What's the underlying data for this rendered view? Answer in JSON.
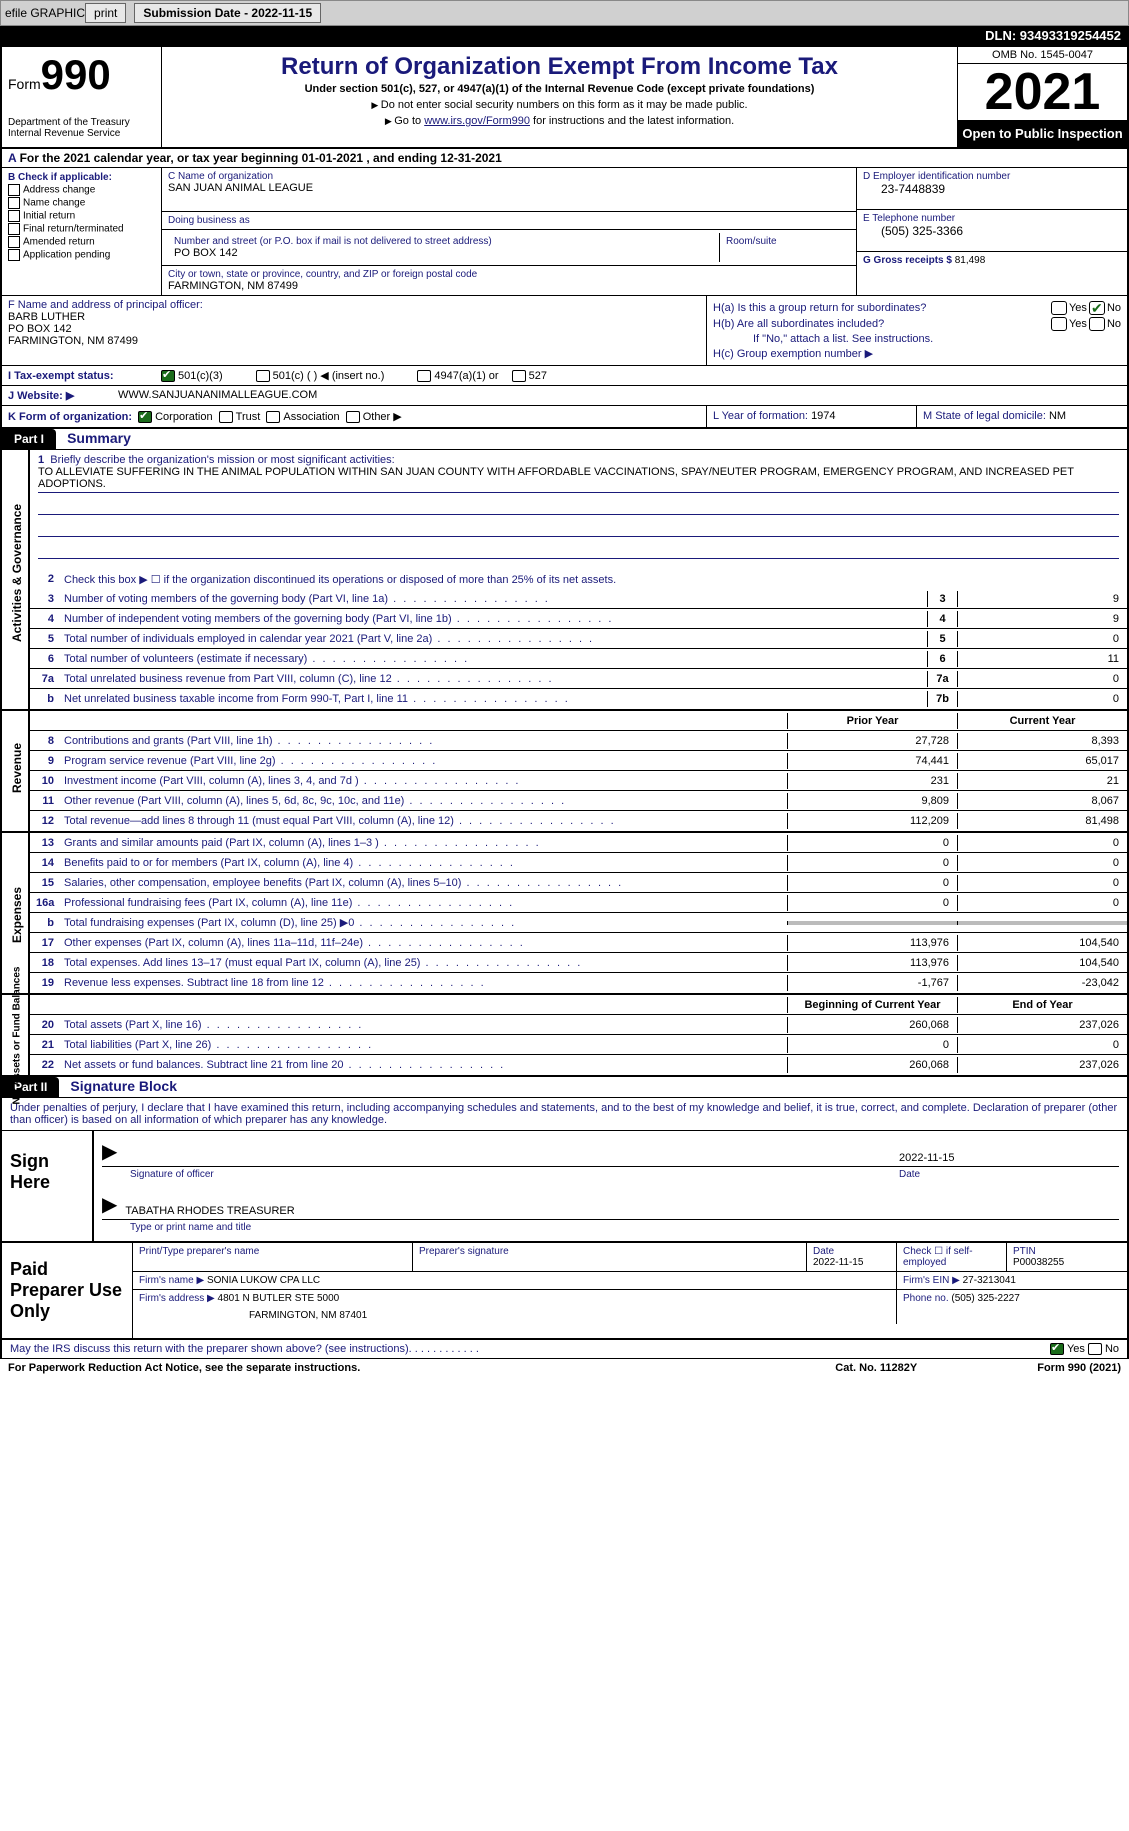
{
  "topbar": {
    "efile_label": "efile GRAPHIC",
    "print_label": "print",
    "submission_label": "Submission Date - 2022-11-15",
    "dln_label": "DLN: 93493319254452"
  },
  "header": {
    "form_label": "Form",
    "form_number": "990",
    "dept": "Department of the Treasury\nInternal Revenue Service",
    "title": "Return of Organization Exempt From Income Tax",
    "subtitle": "Under section 501(c), 527, or 4947(a)(1) of the Internal Revenue Code (except private foundations)",
    "note1": "Do not enter social security numbers on this form as it may be made public.",
    "note2_pre": "Go to ",
    "note2_link": "www.irs.gov/Form990",
    "note2_post": " for instructions and the latest information.",
    "omb": "OMB No. 1545-0047",
    "year": "2021",
    "open": "Open to Public Inspection"
  },
  "line_a": "For the 2021 calendar year, or tax year beginning 01-01-2021   , and ending 12-31-2021",
  "col_b": {
    "label": "B Check if applicable:",
    "items": [
      "Address change",
      "Name change",
      "Initial return",
      "Final return/terminated",
      "Amended return",
      "Application pending"
    ]
  },
  "col_c": {
    "name_label": "C Name of organization",
    "name": "SAN JUAN ANIMAL LEAGUE",
    "dba_label": "Doing business as",
    "dba": "",
    "street_label": "Number and street (or P.O. box if mail is not delivered to street address)",
    "street": "PO BOX 142",
    "room_label": "Room/suite",
    "city_label": "City or town, state or province, country, and ZIP or foreign postal code",
    "city": "FARMINGTON, NM  87499"
  },
  "col_deg": {
    "d_label": "D Employer identification number",
    "d_val": "23-7448839",
    "e_label": "E Telephone number",
    "e_val": "(505) 325-3366",
    "g_label": "G Gross receipts $",
    "g_val": "81,498"
  },
  "col_f": {
    "label": "F Name and address of principal officer:",
    "name": "BARB LUTHER",
    "addr1": "PO BOX 142",
    "addr2": "FARMINGTON, NM  87499"
  },
  "col_h": {
    "a_label": "H(a)  Is this a group return for subordinates?",
    "b_label": "H(b)  Are all subordinates included?",
    "b_note": "If \"No,\" attach a list. See instructions.",
    "c_label": "H(c)  Group exemption number ▶",
    "yes": "Yes",
    "no": "No"
  },
  "line_i": {
    "label": "I  Tax-exempt status:",
    "opt1": "501(c)(3)",
    "opt2": "501(c) (   ) ◀ (insert no.)",
    "opt3": "4947(a)(1) or",
    "opt4": "527"
  },
  "line_j": {
    "label": "J  Website: ▶",
    "val": "WWW.SANJUANANIMALLEAGUE.COM"
  },
  "line_k": {
    "k_label": "K Form of organization:",
    "corp": "Corporation",
    "trust": "Trust",
    "assoc": "Association",
    "other": "Other ▶",
    "l_label": "L Year of formation:",
    "l_val": "1974",
    "m_label": "M State of legal domicile:",
    "m_val": "NM"
  },
  "part1": {
    "hdr": "Part I",
    "title": "Summary"
  },
  "summary": {
    "vlabels": {
      "gov": "Activities & Governance",
      "rev": "Revenue",
      "exp": "Expenses",
      "net": "Net Assets or Fund Balances"
    },
    "line1_label": "Briefly describe the organization's mission or most significant activities:",
    "line1_text": "TO ALLEVIATE SUFFERING IN THE ANIMAL POPULATION WITHIN SAN JUAN COUNTY WITH AFFORDABLE VACCINATIONS, SPAY/NEUTER PROGRAM, EMERGENCY PROGRAM, AND INCREASED PET ADOPTIONS.",
    "line2": "Check this box ▶ ☐ if the organization discontinued its operations or disposed of more than 25% of its net assets.",
    "rows_gov": [
      {
        "n": "3",
        "desc": "Number of voting members of the governing body (Part VI, line 1a)",
        "box": "3",
        "val": "9"
      },
      {
        "n": "4",
        "desc": "Number of independent voting members of the governing body (Part VI, line 1b)",
        "box": "4",
        "val": "9"
      },
      {
        "n": "5",
        "desc": "Total number of individuals employed in calendar year 2021 (Part V, line 2a)",
        "box": "5",
        "val": "0"
      },
      {
        "n": "6",
        "desc": "Total number of volunteers (estimate if necessary)",
        "box": "6",
        "val": "11"
      },
      {
        "n": "7a",
        "desc": "Total unrelated business revenue from Part VIII, column (C), line 12",
        "box": "7a",
        "val": "0"
      },
      {
        "n": "b",
        "desc": "Net unrelated business taxable income from Form 990-T, Part I, line 11",
        "box": "7b",
        "val": "0"
      }
    ],
    "col_hdrs": {
      "prior": "Prior Year",
      "current": "Current Year",
      "begin": "Beginning of Current Year",
      "end": "End of Year"
    },
    "rows_rev": [
      {
        "n": "8",
        "desc": "Contributions and grants (Part VIII, line 1h)",
        "prior": "27,728",
        "curr": "8,393"
      },
      {
        "n": "9",
        "desc": "Program service revenue (Part VIII, line 2g)",
        "prior": "74,441",
        "curr": "65,017"
      },
      {
        "n": "10",
        "desc": "Investment income (Part VIII, column (A), lines 3, 4, and 7d )",
        "prior": "231",
        "curr": "21"
      },
      {
        "n": "11",
        "desc": "Other revenue (Part VIII, column (A), lines 5, 6d, 8c, 9c, 10c, and 11e)",
        "prior": "9,809",
        "curr": "8,067"
      },
      {
        "n": "12",
        "desc": "Total revenue—add lines 8 through 11 (must equal Part VIII, column (A), line 12)",
        "prior": "112,209",
        "curr": "81,498"
      }
    ],
    "rows_exp": [
      {
        "n": "13",
        "desc": "Grants and similar amounts paid (Part IX, column (A), lines 1–3 )",
        "prior": "0",
        "curr": "0"
      },
      {
        "n": "14",
        "desc": "Benefits paid to or for members (Part IX, column (A), line 4)",
        "prior": "0",
        "curr": "0"
      },
      {
        "n": "15",
        "desc": "Salaries, other compensation, employee benefits (Part IX, column (A), lines 5–10)",
        "prior": "0",
        "curr": "0"
      },
      {
        "n": "16a",
        "desc": "Professional fundraising fees (Part IX, column (A), line 11e)",
        "prior": "0",
        "curr": "0"
      },
      {
        "n": "b",
        "desc": "Total fundraising expenses (Part IX, column (D), line 25) ▶0",
        "prior": "",
        "curr": "",
        "grey": true
      },
      {
        "n": "17",
        "desc": "Other expenses (Part IX, column (A), lines 11a–11d, 11f–24e)",
        "prior": "113,976",
        "curr": "104,540"
      },
      {
        "n": "18",
        "desc": "Total expenses. Add lines 13–17 (must equal Part IX, column (A), line 25)",
        "prior": "113,976",
        "curr": "104,540"
      },
      {
        "n": "19",
        "desc": "Revenue less expenses. Subtract line 18 from line 12",
        "prior": "-1,767",
        "curr": "-23,042"
      }
    ],
    "rows_net": [
      {
        "n": "20",
        "desc": "Total assets (Part X, line 16)",
        "prior": "260,068",
        "curr": "237,026"
      },
      {
        "n": "21",
        "desc": "Total liabilities (Part X, line 26)",
        "prior": "0",
        "curr": "0"
      },
      {
        "n": "22",
        "desc": "Net assets or fund balances. Subtract line 21 from line 20",
        "prior": "260,068",
        "curr": "237,026"
      }
    ]
  },
  "part2": {
    "hdr": "Part II",
    "title": "Signature Block"
  },
  "sig_text": "Under penalties of perjury, I declare that I have examined this return, including accompanying schedules and statements, and to the best of my knowledge and belief, it is true, correct, and complete. Declaration of preparer (other than officer) is based on all information of which preparer has any knowledge.",
  "sign_here": {
    "label": "Sign Here",
    "sig_label": "Signature of officer",
    "date_val": "2022-11-15",
    "date_label": "Date",
    "name_val": "TABATHA RHODES TREASURER",
    "name_label": "Type or print name and title"
  },
  "paid_prep": {
    "label": "Paid Preparer Use Only",
    "r1": {
      "c1_label": "Print/Type preparer's name",
      "c1_val": "",
      "c2_label": "Preparer's signature",
      "c2_val": "",
      "c3_label": "Date",
      "c3_val": "2022-11-15",
      "c4_label": "Check ☐ if self-employed",
      "c5_label": "PTIN",
      "c5_val": "P00038255"
    },
    "r2": {
      "c1_label": "Firm's name    ▶",
      "c1_val": "SONIA LUKOW CPA LLC",
      "c2_label": "Firm's EIN ▶",
      "c2_val": "27-3213041"
    },
    "r3": {
      "c1_label": "Firm's address ▶",
      "c1_val": "4801 N BUTLER STE 5000",
      "c1_val2": "FARMINGTON, NM  87401",
      "c2_label": "Phone no.",
      "c2_val": "(505) 325-2227"
    }
  },
  "may_irs": {
    "text": "May the IRS discuss this return with the preparer shown above? (see instructions)",
    "yes": "Yes",
    "no": "No"
  },
  "footer": {
    "left": "For Paperwork Reduction Act Notice, see the separate instructions.",
    "mid": "Cat. No. 11282Y",
    "right": "Form 990 (2021)"
  },
  "colors": {
    "blue": "#1a1a7a",
    "green": "#1a6b1a",
    "grey": "#bbbbbb"
  }
}
